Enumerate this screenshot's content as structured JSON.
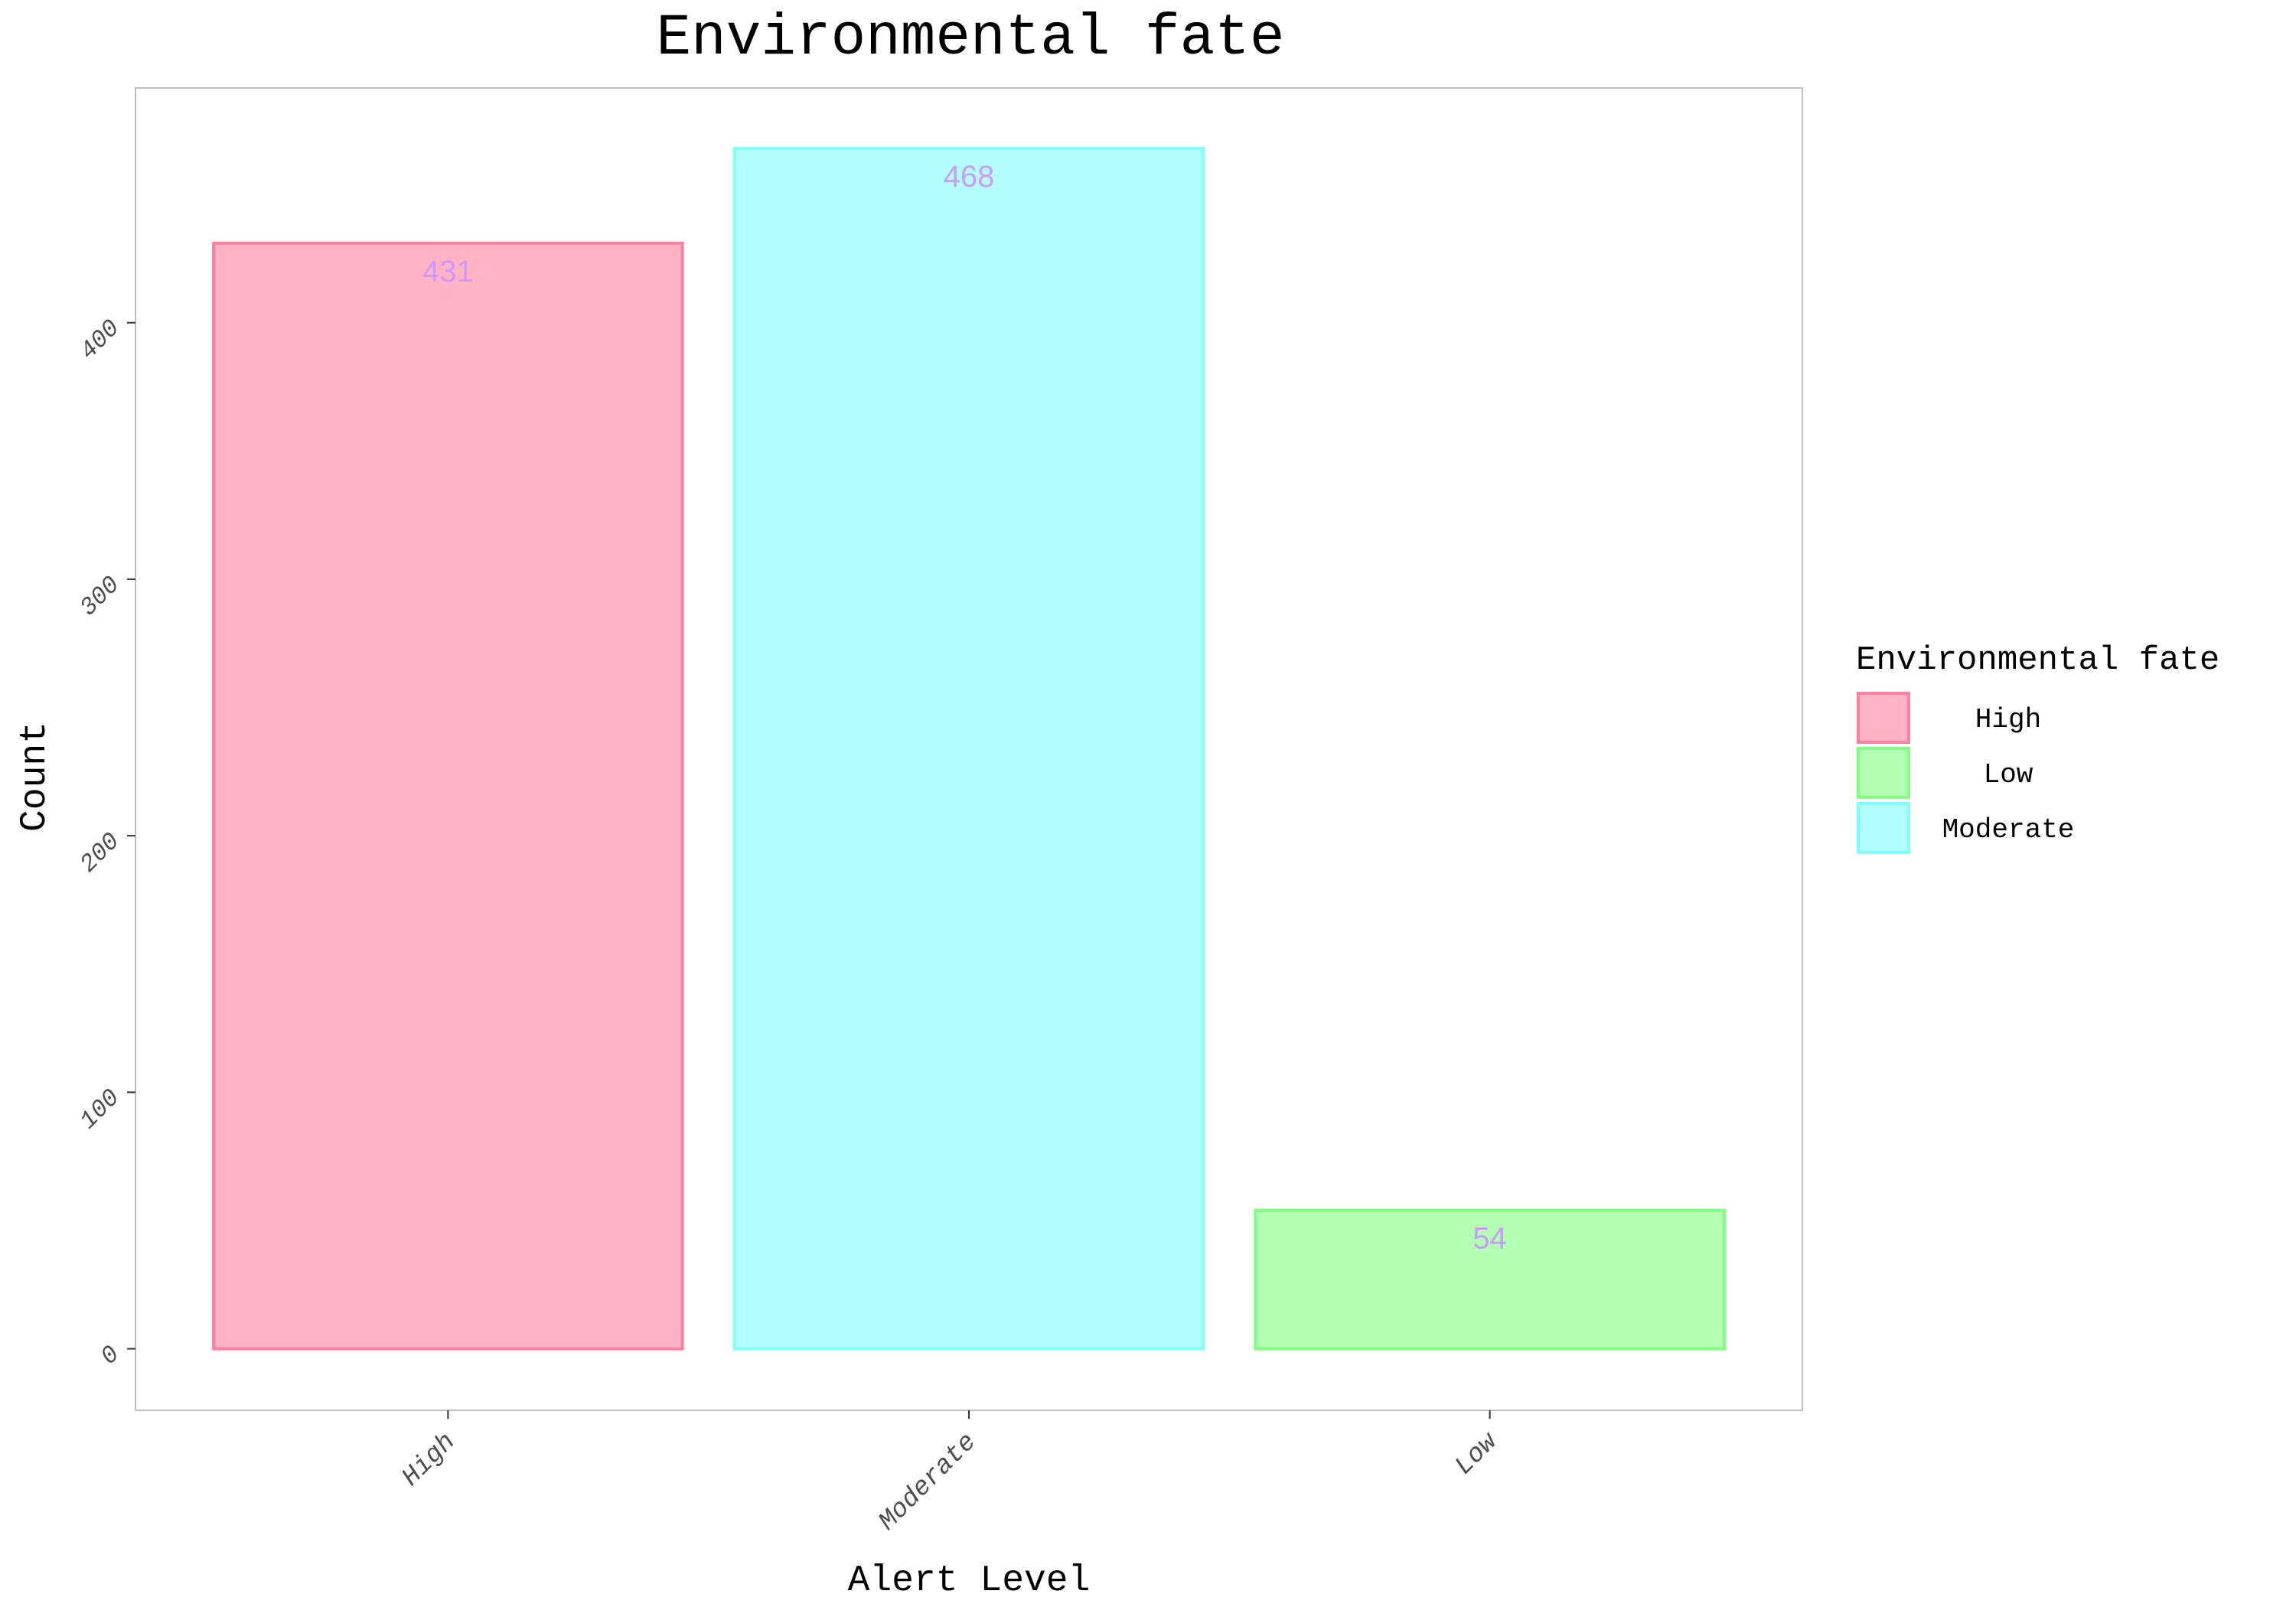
{
  "chart_data": {
    "type": "bar",
    "title": "Environmental fate",
    "xlabel": "Alert Level",
    "ylabel": "Count",
    "categories": [
      "High",
      "Moderate",
      "Low"
    ],
    "values": [
      431,
      468,
      54
    ],
    "value_labels": [
      "431",
      "468",
      "54"
    ],
    "ylim": [
      -24,
      491.5
    ],
    "yticks": [
      0,
      100,
      200,
      300,
      400
    ],
    "ytick_labels": [
      "0",
      "100",
      "200",
      "300",
      "400"
    ],
    "grid": false,
    "legend": {
      "title": "Environmental fate",
      "placement": "right",
      "entries": [
        "High",
        "Low",
        "Moderate"
      ]
    },
    "colors": {
      "High": {
        "fill": "#ffb3c4",
        "stroke": "#ff7f9f"
      },
      "Moderate": {
        "fill": "#b3ffff",
        "stroke": "#80ffff"
      },
      "Low": {
        "fill": "#b3ffb3",
        "stroke": "#80ff80"
      },
      "value_label": "#cc99ff",
      "panel_border": "#bfbfbf",
      "axis_text": "#4d4d4d",
      "tick": "#333333"
    }
  }
}
